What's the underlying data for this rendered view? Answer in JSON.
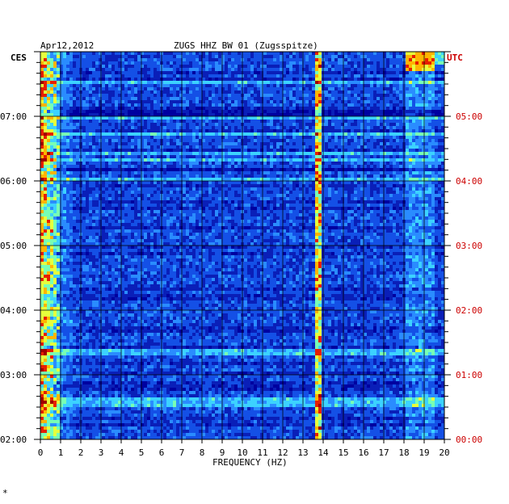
{
  "header": {
    "date": "Apr12,2012",
    "station": "ZUGS HHZ BW 01 (Zugsspitze)",
    "left_zone": "CES",
    "right_zone": "UTC"
  },
  "footer_mark": "*",
  "colors": {
    "local_time_labels": "#000000",
    "utc_labels": "#cc0000",
    "spectrogram_background": "#0a1fb8",
    "grid": "#000000"
  },
  "chart_data": {
    "type": "heatmap",
    "title": "ZUGS HHZ BW 01 (Zugsspitze)",
    "xlabel": "FREQUENCY (HZ)",
    "ylabel": "",
    "xlim": [
      0,
      20
    ],
    "x_ticks": [
      "0",
      "1",
      "2",
      "3",
      "4",
      "5",
      "6",
      "7",
      "8",
      "9",
      "10",
      "11",
      "12",
      "13",
      "14",
      "15",
      "16",
      "17",
      "18",
      "19",
      "20"
    ],
    "ylim_local": [
      "02:00",
      "08:00"
    ],
    "y_ticks_local": [
      "07:00",
      "06:00",
      "05:00",
      "04:00",
      "03:00",
      "02:00"
    ],
    "y_ticks_utc": [
      "05:00",
      "04:00",
      "03:00",
      "02:00",
      "01:00",
      "00:00"
    ],
    "colormap": [
      "#0000a0",
      "#0a1fb8",
      "#1450e6",
      "#2a8cff",
      "#3cd2ff",
      "#78ffb4",
      "#e6ff3c",
      "#ffb400",
      "#e61e00",
      "#a00000"
    ],
    "features": [
      {
        "name": "low-frequency band",
        "freq_hz": [
          0,
          1
        ],
        "level": "high"
      },
      {
        "name": "narrow line",
        "freq_hz": 13.8,
        "level": "high"
      },
      {
        "name": "band near 18-19 Hz (top)",
        "freq_hz": [
          18,
          19.5
        ],
        "level": "high"
      }
    ],
    "grid": true
  }
}
